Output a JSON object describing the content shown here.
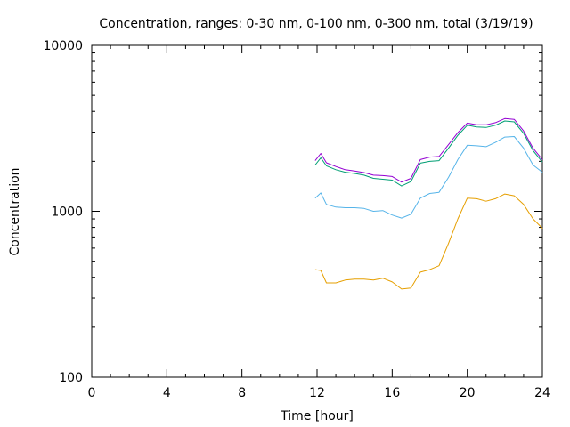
{
  "chart_data": {
    "type": "line",
    "title": "Concentration, ranges: 0-30 nm, 0-100 nm, 0-300 nm, total (3/19/19)",
    "xlabel": "Time [hour]",
    "ylabel": "Concentration",
    "x_scale": "linear",
    "y_scale": "log",
    "xlim": [
      0,
      24
    ],
    "ylim": [
      100,
      10000
    ],
    "x_ticks": [
      0,
      4,
      8,
      12,
      16,
      20,
      24
    ],
    "x_tick_labels": [
      "0",
      "4",
      "8",
      "12",
      "16",
      "20",
      "24"
    ],
    "y_ticks": [
      100,
      1000,
      10000
    ],
    "y_tick_labels": [
      "100",
      "1000",
      "10000"
    ],
    "grid": false,
    "legend": "none",
    "x": [
      11.9,
      12.2,
      12.5,
      13,
      13.5,
      14,
      14.5,
      15,
      15.5,
      16,
      16.5,
      17,
      17.5,
      18,
      18.5,
      19,
      19.5,
      20,
      20.5,
      21,
      21.5,
      22,
      22.5,
      23,
      23.5,
      24
    ],
    "series": [
      {
        "name": "0-30 nm",
        "color": "#e69f00",
        "values": [
          445,
          440,
          370,
          370,
          385,
          390,
          390,
          385,
          395,
          375,
          340,
          345,
          430,
          445,
          470,
          640,
          900,
          1200,
          1190,
          1150,
          1190,
          1270,
          1240,
          1100,
          900,
          790
        ]
      },
      {
        "name": "0-100 nm",
        "color": "#56b4e9",
        "values": [
          1200,
          1290,
          1100,
          1060,
          1050,
          1050,
          1040,
          1000,
          1010,
          950,
          910,
          960,
          1200,
          1280,
          1300,
          1600,
          2050,
          2500,
          2480,
          2450,
          2600,
          2800,
          2820,
          2400,
          1900,
          1720
        ]
      },
      {
        "name": "0-300 nm",
        "color": "#009e73",
        "values": [
          1900,
          2100,
          1880,
          1780,
          1720,
          1690,
          1650,
          1580,
          1560,
          1540,
          1420,
          1510,
          1950,
          2000,
          2020,
          2400,
          2870,
          3300,
          3220,
          3200,
          3300,
          3500,
          3460,
          2950,
          2320,
          1980
        ]
      },
      {
        "name": "total",
        "color": "#9400d3",
        "values": [
          2020,
          2230,
          1960,
          1860,
          1780,
          1750,
          1710,
          1650,
          1640,
          1620,
          1500,
          1580,
          2050,
          2120,
          2140,
          2520,
          2980,
          3400,
          3320,
          3320,
          3420,
          3620,
          3580,
          3050,
          2400,
          2050
        ]
      }
    ]
  }
}
